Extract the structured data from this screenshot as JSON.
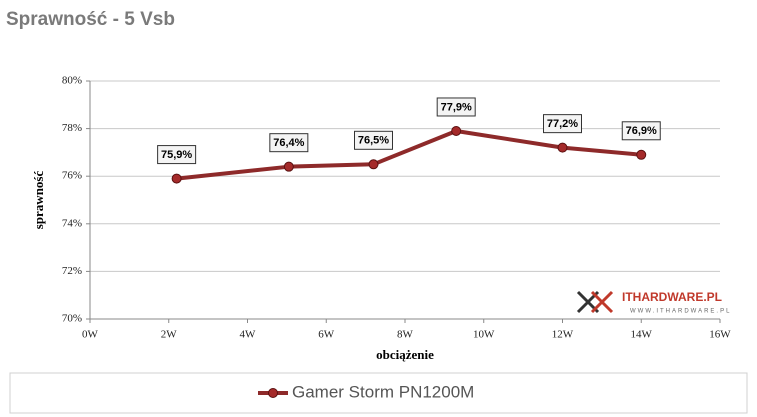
{
  "chart_data": {
    "type": "line",
    "title": "Sprawność - 5 Vsb",
    "x_label": "obciążenie",
    "y_label": "sprawność",
    "watermark": "ITHARDWARE.PL",
    "watermark_sub": "WWW.ITHARDWARE.PL",
    "x": [
      2.2,
      5.05,
      7.2,
      9.3,
      12.0,
      14.0
    ],
    "series": [
      {
        "name": "Gamer Storm PN1200M",
        "color": "#8e2a2a",
        "values": [
          75.9,
          76.4,
          76.5,
          77.9,
          77.2,
          76.9
        ],
        "value_labels": [
          "75,9%",
          "76,4%",
          "76,5%",
          "77,9%",
          "77,2%",
          "76,9%"
        ]
      }
    ],
    "xlim": [
      0,
      16
    ],
    "xticks": [
      {
        "value": 0,
        "label": "0W"
      },
      {
        "value": 2,
        "label": "2W"
      },
      {
        "value": 4,
        "label": "4W"
      },
      {
        "value": 6,
        "label": "6W"
      },
      {
        "value": 8,
        "label": "8W"
      },
      {
        "value": 10,
        "label": "10W"
      },
      {
        "value": 12,
        "label": "12W"
      },
      {
        "value": 14,
        "label": "14W"
      },
      {
        "value": 16,
        "label": "16W"
      }
    ],
    "ylim": [
      70,
      80
    ],
    "yticks": [
      {
        "value": 70,
        "label": "70%"
      },
      {
        "value": 72,
        "label": "72%"
      },
      {
        "value": 74,
        "label": "74%"
      },
      {
        "value": 76,
        "label": "76%"
      },
      {
        "value": 78,
        "label": "78%"
      },
      {
        "value": 80,
        "label": "80%"
      }
    ],
    "grid": true,
    "legend": "bottom"
  }
}
